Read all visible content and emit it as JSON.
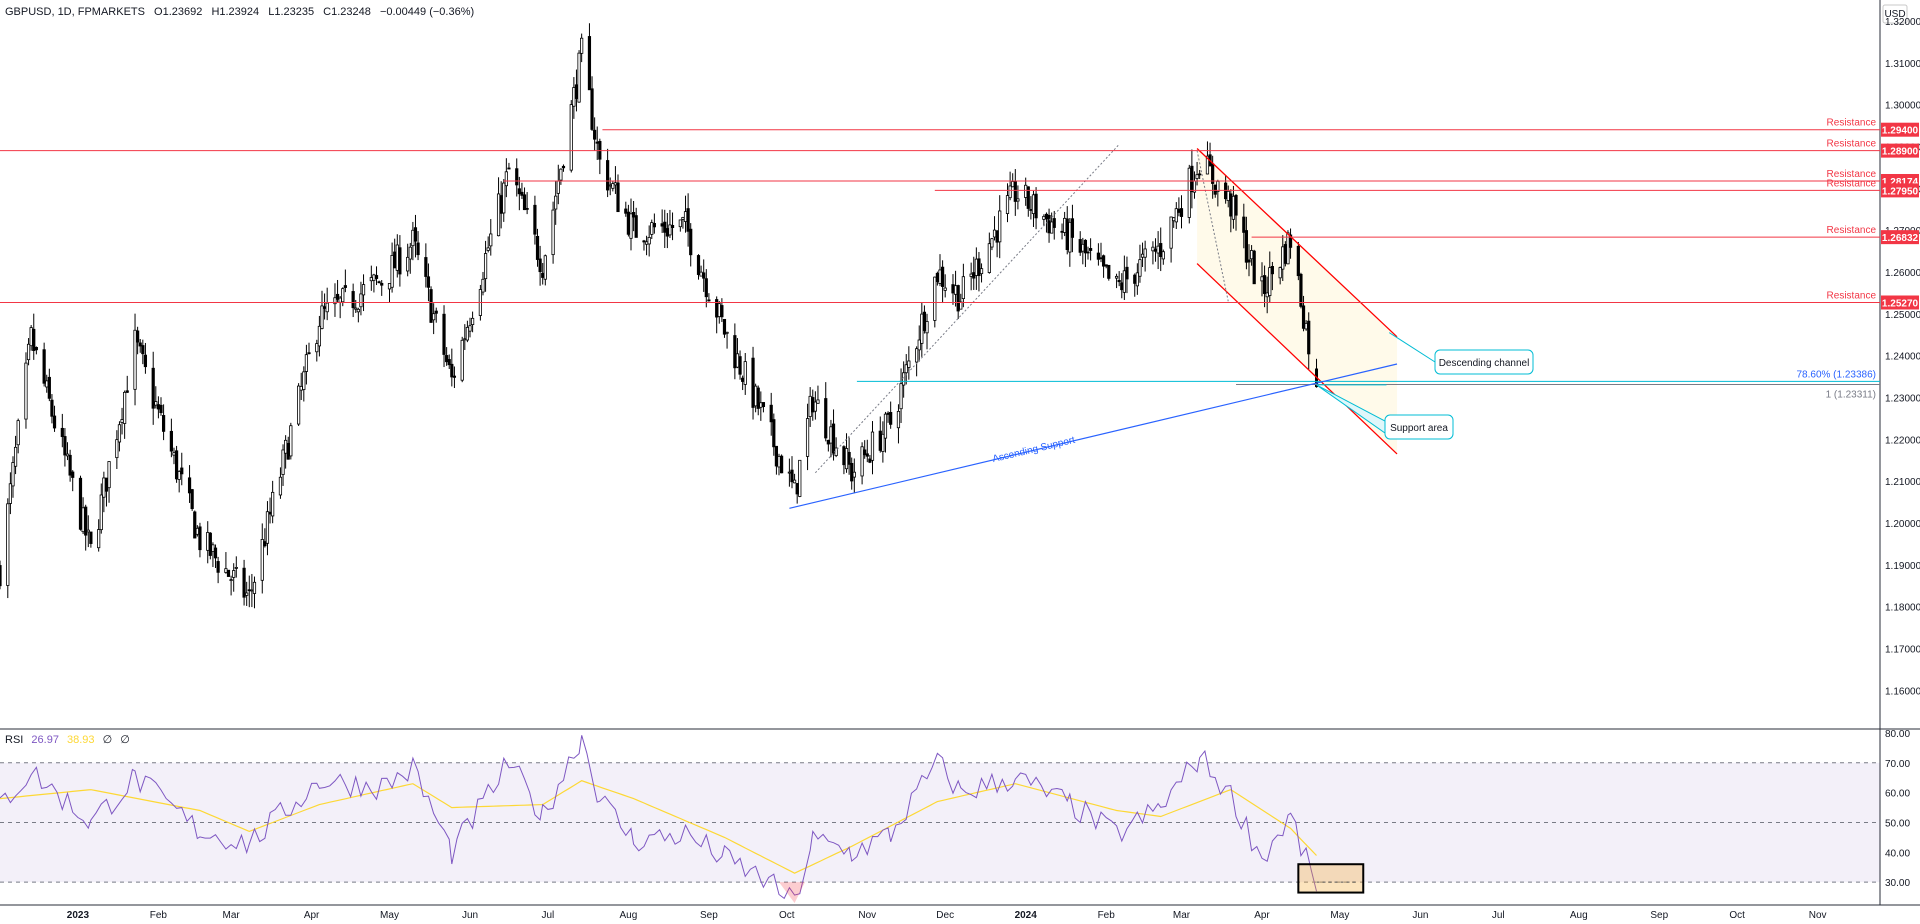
{
  "legend": {
    "symbol": "GBPUSD, 1D, FPMARKETS",
    "open": "O1.23692",
    "high": "H1.23924",
    "low": "L1.23235",
    "close": "C1.23248",
    "change": "−0.00449 (−0.36%)"
  },
  "rsi_legend": {
    "name": "RSI",
    "value": "26.97",
    "ma_value": "38.93",
    "p1": "∅",
    "p2": "∅"
  },
  "currency": "USD",
  "colors": {
    "resistance": "#f23645",
    "channel": "#ff0000",
    "support": "#2962ff",
    "fib": "#00bcd4",
    "rsi": "#7e57c2",
    "rsi_ma": "#fdd835",
    "highlight": "#f5a623"
  },
  "chart_data": [
    {
      "type": "candlestick",
      "title": "GBPUSD, 1D, FPMARKETS",
      "y_axis": {
        "range": [
          1.151,
          1.325
        ],
        "ticks": [
          "1.32000",
          "1.31000",
          "1.30000",
          "1.29000",
          "1.28000",
          "1.27000",
          "1.26000",
          "1.25000",
          "1.24000",
          "1.23000",
          "1.22000",
          "1.21000",
          "1.20000",
          "1.19000",
          "1.18000",
          "1.17000",
          "1.16000"
        ]
      },
      "x_axis": {
        "range": [
          "2022-12-02",
          "2024-11-25"
        ],
        "ticks": [
          {
            "label": "2023",
            "date": "2023-01-01"
          },
          {
            "label": "Feb",
            "date": "2023-02-01"
          },
          {
            "label": "Mar",
            "date": "2023-03-01"
          },
          {
            "label": "Apr",
            "date": "2023-04-01"
          },
          {
            "label": "May",
            "date": "2023-05-01"
          },
          {
            "label": "Jun",
            "date": "2023-06-01"
          },
          {
            "label": "Jul",
            "date": "2023-07-01"
          },
          {
            "label": "Aug",
            "date": "2023-08-01"
          },
          {
            "label": "Sep",
            "date": "2023-09-01"
          },
          {
            "label": "Oct",
            "date": "2023-10-01"
          },
          {
            "label": "Nov",
            "date": "2023-11-01"
          },
          {
            "label": "Dec",
            "date": "2023-12-01"
          },
          {
            "label": "2024",
            "date": "2024-01-01"
          },
          {
            "label": "Feb",
            "date": "2024-02-01"
          },
          {
            "label": "Mar",
            "date": "2024-03-01"
          },
          {
            "label": "Apr",
            "date": "2024-04-01"
          },
          {
            "label": "May",
            "date": "2024-05-01"
          },
          {
            "label": "Jun",
            "date": "2024-06-01"
          },
          {
            "label": "Jul",
            "date": "2024-07-01"
          },
          {
            "label": "Aug",
            "date": "2024-08-01"
          },
          {
            "label": "Sep",
            "date": "2024-09-01"
          },
          {
            "label": "Oct",
            "date": "2024-10-01"
          },
          {
            "label": "Nov",
            "date": "2024-11-01"
          }
        ]
      },
      "price_path": [
        [
          "2022-12-02",
          1.189
        ],
        [
          "2022-12-14",
          1.244
        ],
        [
          "2023-01-06",
          1.193
        ],
        [
          "2023-01-23",
          1.243
        ],
        [
          "2023-02-17",
          1.196
        ],
        [
          "2023-03-08",
          1.182
        ],
        [
          "2023-04-04",
          1.249
        ],
        [
          "2023-04-28",
          1.258
        ],
        [
          "2023-05-10",
          1.267
        ],
        [
          "2023-05-25",
          1.234
        ],
        [
          "2023-06-16",
          1.284
        ],
        [
          "2023-06-29",
          1.262
        ],
        [
          "2023-07-14",
          1.312
        ],
        [
          "2023-07-21",
          1.286
        ],
        [
          "2023-08-03",
          1.27
        ],
        [
          "2023-08-23",
          1.271
        ],
        [
          "2023-09-07",
          1.246
        ],
        [
          "2023-09-22",
          1.225
        ],
        [
          "2023-10-04",
          1.207
        ],
        [
          "2023-10-11",
          1.23
        ],
        [
          "2023-10-26",
          1.212
        ],
        [
          "2023-11-10",
          1.224
        ],
        [
          "2023-11-28",
          1.26
        ],
        [
          "2023-12-07",
          1.254
        ],
        [
          "2023-12-28",
          1.279
        ],
        [
          "2024-01-18",
          1.268
        ],
        [
          "2024-02-05",
          1.256
        ],
        [
          "2024-02-22",
          1.266
        ],
        [
          "2024-03-08",
          1.287
        ],
        [
          "2024-03-20",
          1.276
        ],
        [
          "2024-04-01",
          1.255
        ],
        [
          "2024-04-12",
          1.268
        ],
        [
          "2024-04-22",
          1.2325
        ]
      ],
      "last_candle": {
        "open": 1.23692,
        "high": 1.23924,
        "low": 1.23235,
        "close": 1.23248
      },
      "horizontal_lines": [
        {
          "label": "Resistance",
          "value": 1.294,
          "price_label": "1.29400",
          "from": "2023-07-22"
        },
        {
          "label": "Resistance",
          "value": 1.289,
          "price_label": "1.28900",
          "from": "2022-12-02"
        },
        {
          "label": "Resistance",
          "value": 1.28174,
          "price_label": "1.28174",
          "from": "2023-06-14"
        },
        {
          "label": "Resistance",
          "value": 1.2795,
          "price_label": "1.27950",
          "from": "2023-11-27"
        },
        {
          "label": "Resistance",
          "value": 1.26832,
          "price_label": "1.26832",
          "from": "2024-03-28"
        },
        {
          "label": "Resistance",
          "value": 1.2527,
          "price_label": "1.25270",
          "from": "2022-12-02"
        }
      ],
      "fib_levels": [
        {
          "label": "78.60% (1.23386)",
          "value": 1.23386,
          "from": "2023-10-28"
        },
        {
          "label": "1 (1.23311)",
          "value": 1.23311,
          "from": "2024-03-22"
        }
      ],
      "descending_channel": {
        "label": "Descending channel",
        "upper": [
          [
            "2024-03-07",
            1.2895
          ],
          [
            "2024-05-23",
            1.2445
          ]
        ],
        "lower": [
          [
            "2024-03-07",
            1.262
          ],
          [
            "2024-05-23",
            1.2165
          ]
        ]
      },
      "ascending_support": {
        "label": "Ascending Support",
        "line": [
          [
            "2023-10-02",
            1.2035
          ],
          [
            "2024-05-23",
            1.238
          ]
        ]
      },
      "callouts": [
        {
          "label": "Descending channel"
        },
        {
          "label": "Support area"
        }
      ]
    },
    {
      "type": "line",
      "title": "RSI",
      "y_axis": {
        "range": [
          23,
          81
        ],
        "ticks": [
          "80.00",
          "70.00",
          "60.00",
          "50.00",
          "40.00",
          "30.00"
        ]
      },
      "bands": {
        "upper": 70,
        "lower": 30,
        "middle": 50
      },
      "series": [
        {
          "name": "RSI",
          "values": [
            [
              "2022-12-02",
              56
            ],
            [
              "2022-12-14",
              67
            ],
            [
              "2023-01-06",
              50
            ],
            [
              "2023-01-23",
              65
            ],
            [
              "2023-02-17",
              47
            ],
            [
              "2023-03-08",
              43
            ],
            [
              "2023-04-04",
              64
            ],
            [
              "2023-04-28",
              62
            ],
            [
              "2023-05-10",
              68
            ],
            [
              "2023-05-25",
              40
            ],
            [
              "2023-06-16",
              70
            ],
            [
              "2023-06-29",
              52
            ],
            [
              "2023-07-14",
              79
            ],
            [
              "2023-07-21",
              58
            ],
            [
              "2023-08-03",
              44
            ],
            [
              "2023-08-23",
              46
            ],
            [
              "2023-09-07",
              38
            ],
            [
              "2023-09-22",
              31
            ],
            [
              "2023-10-04",
              23
            ],
            [
              "2023-10-11",
              44
            ],
            [
              "2023-10-26",
              40
            ],
            [
              "2023-11-10",
              46
            ],
            [
              "2023-11-28",
              70
            ],
            [
              "2023-12-07",
              60
            ],
            [
              "2023-12-28",
              65
            ],
            [
              "2024-01-18",
              56
            ],
            [
              "2024-02-05",
              46
            ],
            [
              "2024-02-22",
              55
            ],
            [
              "2024-03-08",
              72
            ],
            [
              "2024-03-20",
              59
            ],
            [
              "2024-04-01",
              38
            ],
            [
              "2024-04-12",
              52
            ],
            [
              "2024-04-22",
              26.97
            ]
          ]
        },
        {
          "name": "RSI MA",
          "values": [
            [
              "2022-12-02",
              58
            ],
            [
              "2023-01-06",
              61
            ],
            [
              "2023-02-17",
              54
            ],
            [
              "2023-03-08",
              47
            ],
            [
              "2023-04-04",
              56
            ],
            [
              "2023-05-10",
              63
            ],
            [
              "2023-05-25",
              55
            ],
            [
              "2023-06-29",
              56
            ],
            [
              "2023-07-14",
              64
            ],
            [
              "2023-08-03",
              58
            ],
            [
              "2023-09-07",
              45
            ],
            [
              "2023-10-04",
              33
            ],
            [
              "2023-10-26",
              42
            ],
            [
              "2023-11-28",
              57
            ],
            [
              "2023-12-28",
              63
            ],
            [
              "2024-02-05",
              54
            ],
            [
              "2024-02-22",
              52
            ],
            [
              "2024-03-20",
              61
            ],
            [
              "2024-04-12",
              48
            ],
            [
              "2024-04-22",
              38.93
            ]
          ]
        }
      ]
    }
  ]
}
